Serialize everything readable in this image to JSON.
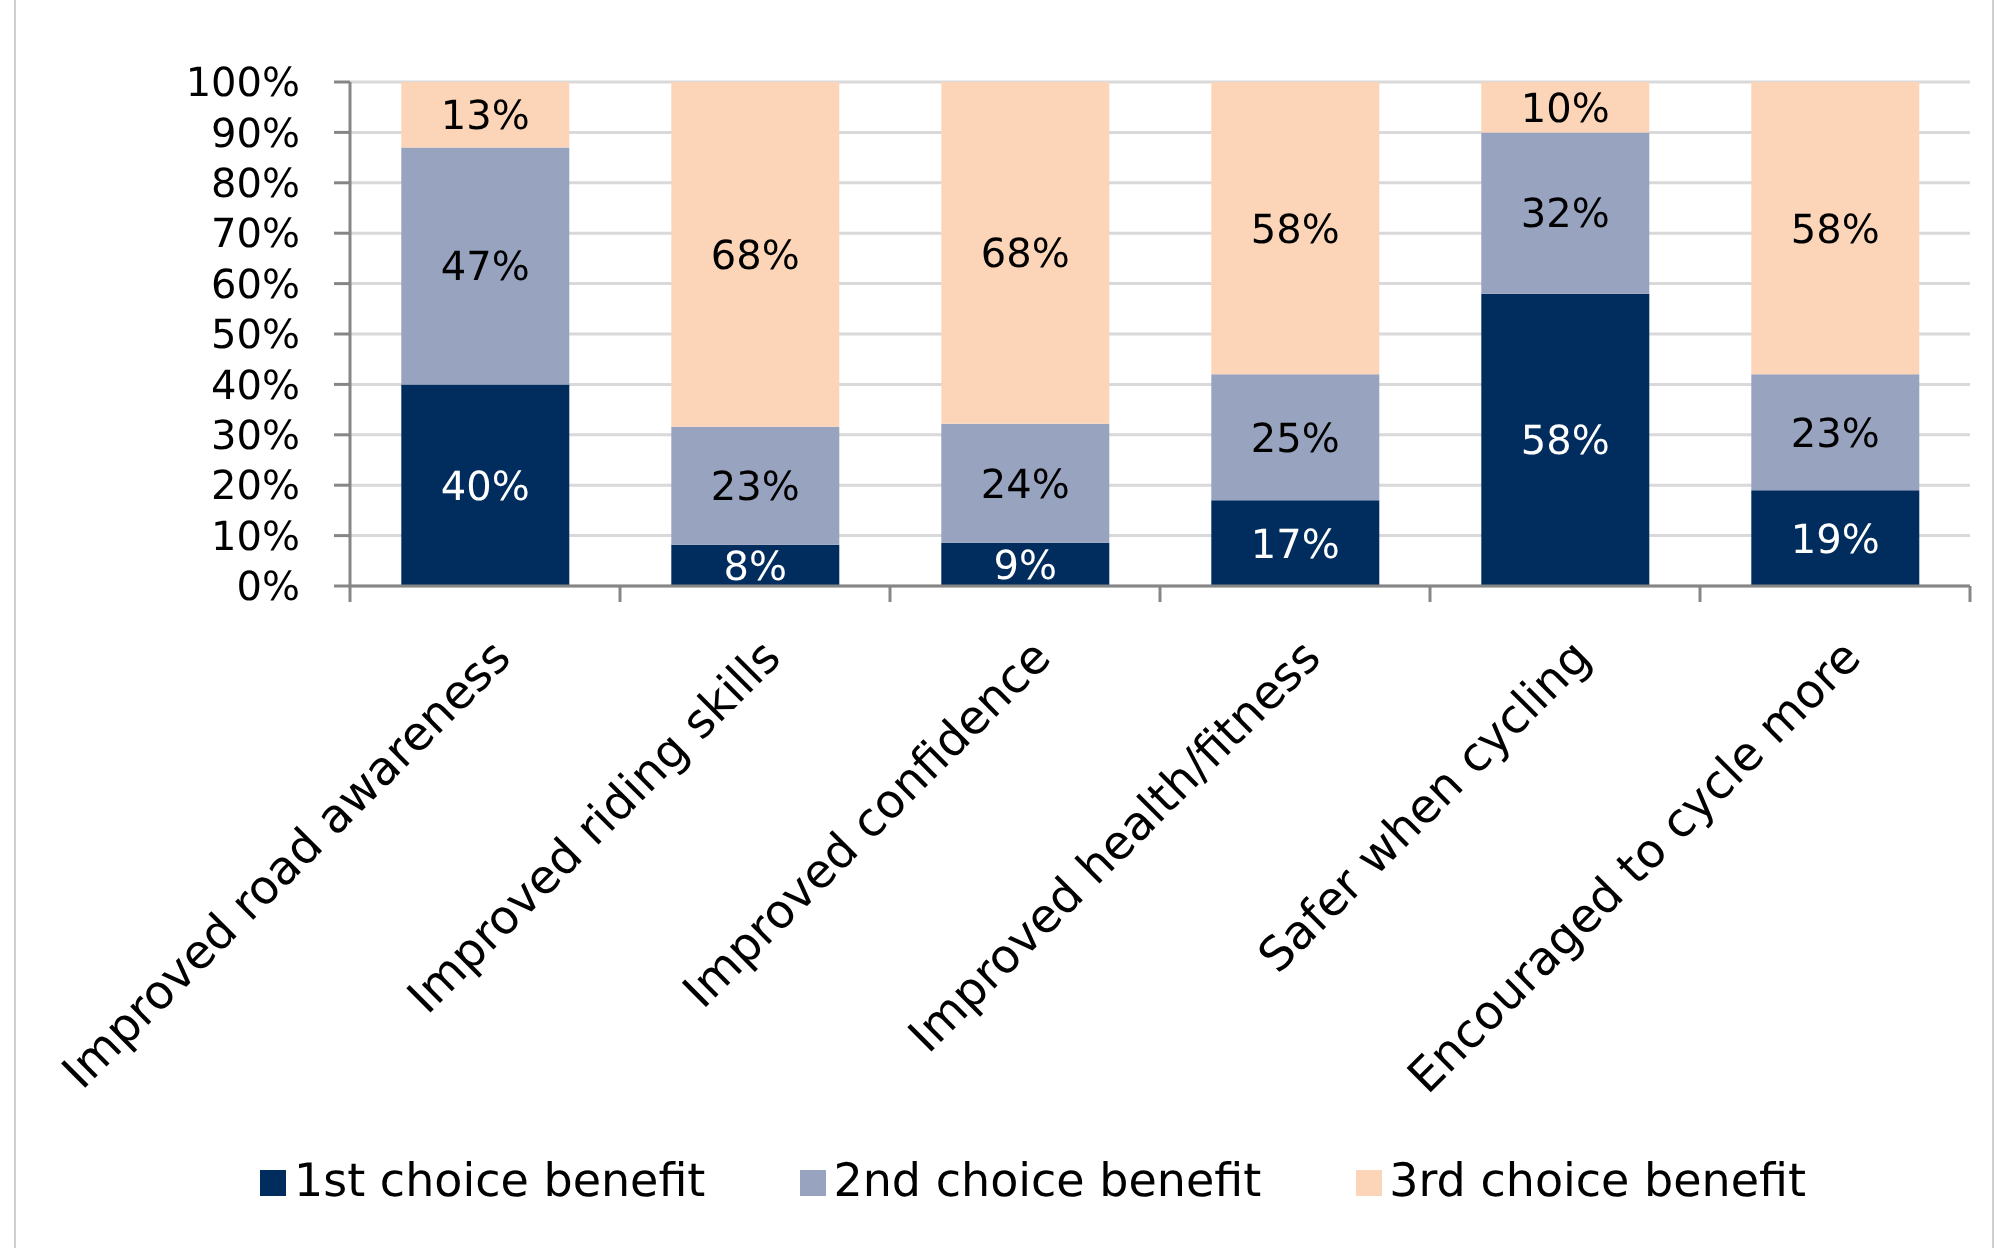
{
  "chart_data": {
    "type": "bar",
    "stacked": true,
    "categories": [
      "Improved road awareness",
      "Improved riding skills",
      "Improved confidence",
      "Improved health/fitness",
      "Safer when cycling",
      "Encouraged to cycle more"
    ],
    "series": [
      {
        "name": "1st choice benefit",
        "color": "#002d5e",
        "values": [
          40,
          8.2,
          8.6,
          17,
          58,
          19
        ],
        "value_labels": [
          "40%",
          "8%",
          "9%",
          "17%",
          "58%",
          "19%"
        ]
      },
      {
        "name": "2nd choice benefit",
        "color": "#98a3bf",
        "values": [
          47,
          23.4,
          23.6,
          25,
          32,
          23
        ],
        "value_labels": [
          "47%",
          "23%",
          "24%",
          "25%",
          "32%",
          "23%"
        ]
      },
      {
        "name": "3rd choice benefit",
        "color": "#fcd5b8",
        "values": [
          13,
          68.4,
          67.8,
          58,
          10,
          58
        ],
        "value_labels": [
          "13%",
          "68%",
          "68%",
          "58%",
          "10%",
          "58%"
        ]
      }
    ],
    "ylim": [
      0,
      100
    ],
    "yticks": [
      {
        "value": 0,
        "label": "0%"
      },
      {
        "value": 10,
        "label": "10%"
      },
      {
        "value": 20,
        "label": "20%"
      },
      {
        "value": 30,
        "label": "30%"
      },
      {
        "value": 40,
        "label": "40%"
      },
      {
        "value": 50,
        "label": "50%"
      },
      {
        "value": 60,
        "label": "60%"
      },
      {
        "value": 70,
        "label": "70%"
      },
      {
        "value": 80,
        "label": "80%"
      },
      {
        "value": 90,
        "label": "90%"
      },
      {
        "value": 100,
        "label": "100%"
      }
    ],
    "grid": "y",
    "legend": "bottom"
  }
}
